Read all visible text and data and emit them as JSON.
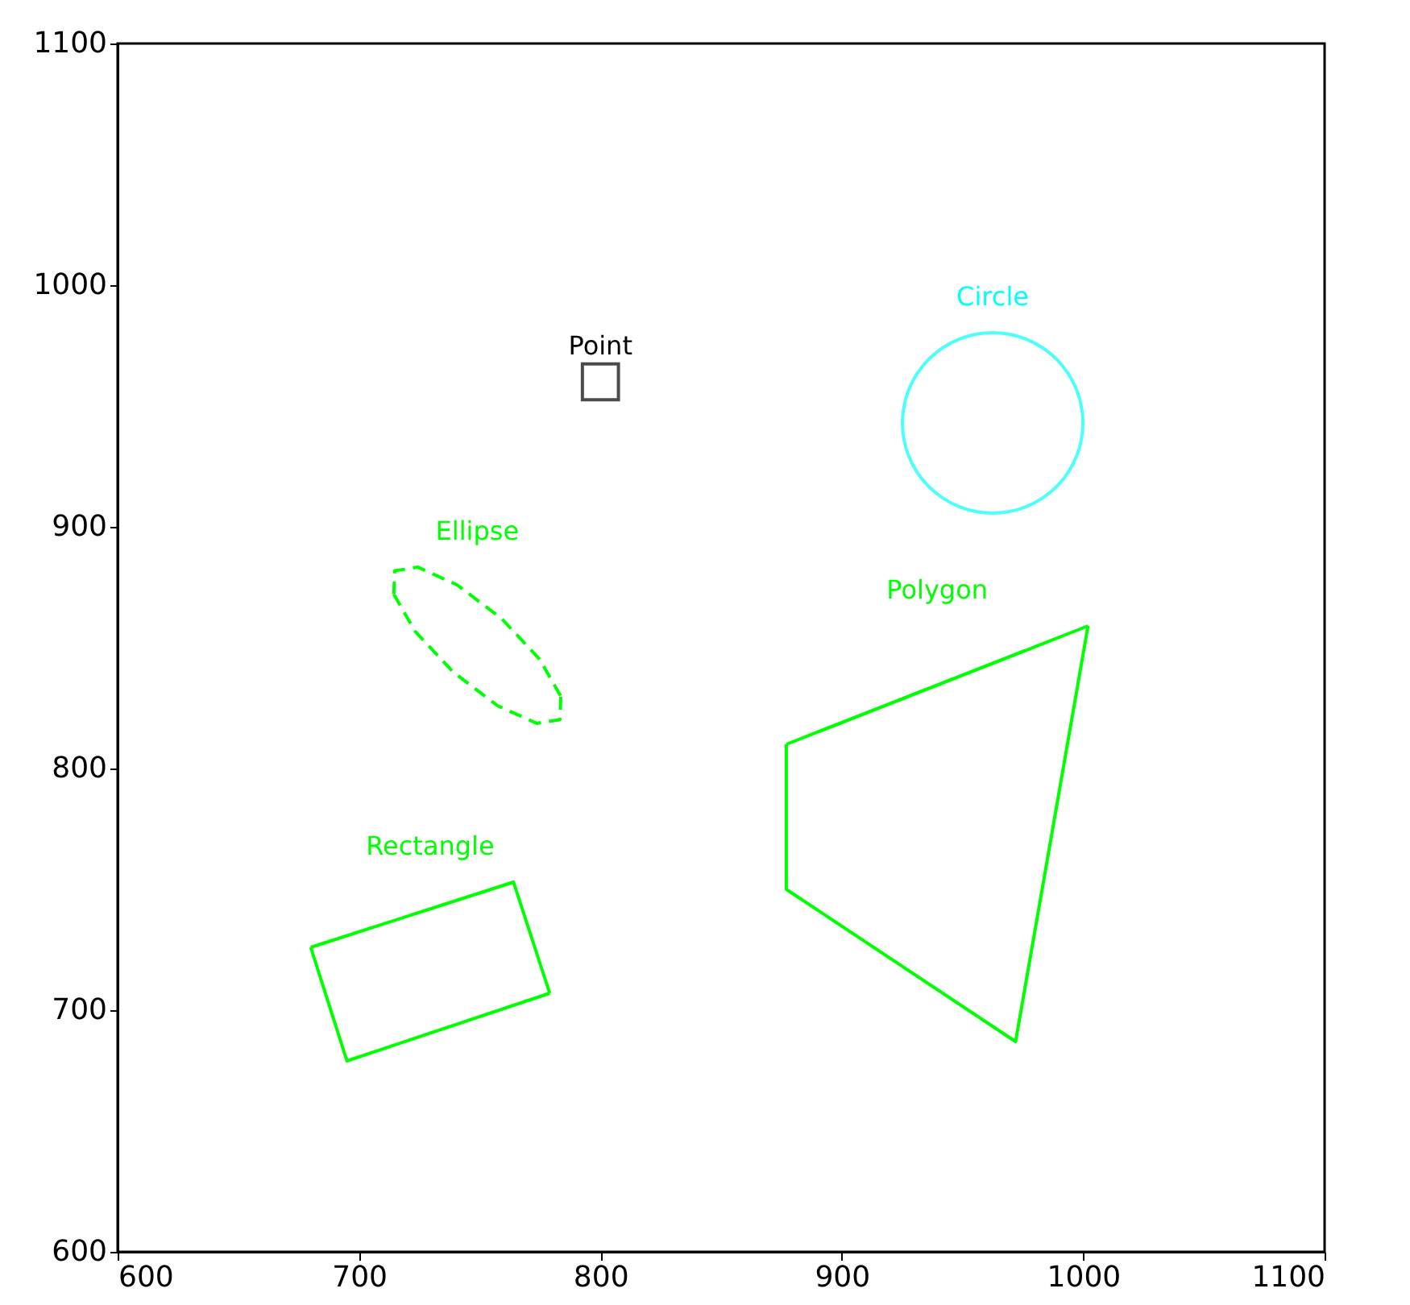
{
  "chart_data": {
    "type": "line",
    "xlim": [
      600,
      1100
    ],
    "ylim": [
      600,
      1100
    ],
    "xticks": [
      600,
      700,
      800,
      900,
      1000,
      1100
    ],
    "yticks": [
      600,
      700,
      800,
      900,
      1000,
      1100
    ],
    "grid": false,
    "series": [
      {
        "name": "Point",
        "type": "scatter",
        "marker": "square",
        "color": "#000000",
        "x": [
          800
        ],
        "values": [
          960
        ]
      },
      {
        "name": "Circle",
        "type": "bubble",
        "marker": "circle",
        "color": "#00ffff",
        "x": [
          962.5
        ],
        "values": [
          943
        ],
        "sizes": [
          1
        ]
      },
      {
        "name": "Ellipse",
        "color": "#00ff00",
        "line_style": "dashed",
        "x": [
          714.4,
          714.8,
          724.4,
          740.6,
          759,
          774.8,
          783.6
        ],
        "values": [
          872.1,
          881.8,
          883.3,
          876,
          862.1,
          845.2,
          829.9
        ]
      },
      {
        "color": "#00ff00",
        "line_style": "dashed",
        "x": [
          714.4,
          723.2,
          739,
          757.4,
          773.6,
          783.2,
          783.6
        ],
        "values": [
          872.1,
          856.8,
          839.9,
          826,
          818.7,
          820.2,
          829.9
        ]
      },
      {
        "name": "Polygon",
        "color": "#00ff00",
        "x": [
          877,
          1002
        ],
        "values": [
          810,
          859
        ]
      },
      {
        "color": "#00ff00",
        "x": [
          877,
          877,
          972,
          1002
        ],
        "values": [
          810,
          750,
          687,
          859
        ]
      },
      {
        "name": "Rectangle",
        "color": "#00ff00",
        "x": [
          680,
          764,
          779
        ],
        "values": [
          726,
          753,
          707
        ]
      },
      {
        "color": "#00ff00",
        "x": [
          680,
          695,
          779
        ],
        "values": [
          726,
          679,
          707
        ]
      }
    ]
  }
}
